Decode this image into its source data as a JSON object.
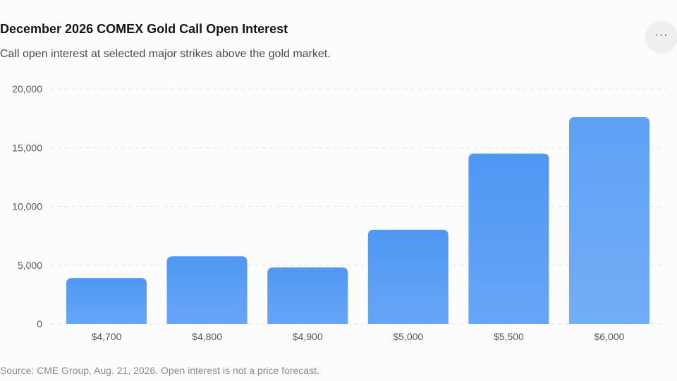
{
  "header": {
    "title": "December 2026 COMEX Gold Call Open Interest",
    "subtitle": "Call open interest at selected major strikes above the gold market.",
    "more_icon": "ellipsis-icon"
  },
  "chart_data": {
    "type": "bar",
    "categories": [
      "$4,700",
      "$4,800",
      "$4,900",
      "$5,000",
      "$5,500",
      "$6,000"
    ],
    "values": [
      3900,
      5750,
      4800,
      8000,
      14500,
      17600
    ],
    "yticks": [
      "0",
      "5,000",
      "10,000",
      "15,000",
      "20,000"
    ],
    "ylim": [
      0,
      20000
    ],
    "grid": true,
    "bar_color": "#5a9ef5"
  },
  "footer": {
    "source": "Source: CME Group, Aug. 21, 2026. Open interest is not a price forecast."
  }
}
